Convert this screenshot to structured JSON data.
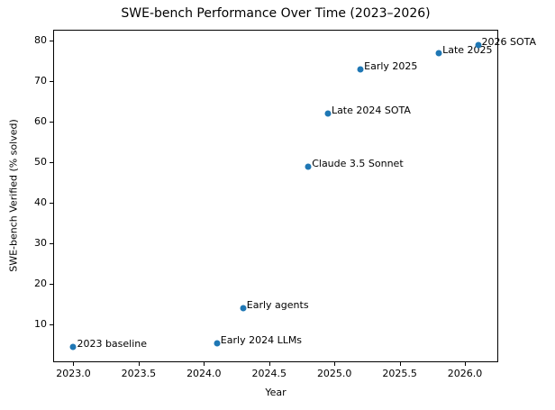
{
  "chart_data": {
    "type": "scatter",
    "title": "SWE-bench Performance Over Time (2023–2026)",
    "xlabel": "Year",
    "ylabel": "SWE-bench Verified (% solved)",
    "xlim": [
      2022.845,
      2026.255
    ],
    "ylim": [
      0.775,
      82.725
    ],
    "x_tick_values": [
      2023.0,
      2023.5,
      2024.0,
      2024.5,
      2025.0,
      2025.5,
      2026.0
    ],
    "x_tick_labels": [
      "2023.0",
      "2023.5",
      "2024.0",
      "2024.5",
      "2025.0",
      "2025.5",
      "2026.0"
    ],
    "y_tick_values": [
      10,
      20,
      30,
      40,
      50,
      60,
      70,
      80
    ],
    "y_tick_labels": [
      "10",
      "20",
      "30",
      "40",
      "50",
      "60",
      "70",
      "80"
    ],
    "grid": false,
    "legend_position": "none",
    "marker_color": "#1f77b4",
    "points": [
      {
        "x": 2023.0,
        "y": 4.5,
        "label": "2023 baseline"
      },
      {
        "x": 2024.1,
        "y": 5.5,
        "label": "Early 2024 LLMs"
      },
      {
        "x": 2024.3,
        "y": 14,
        "label": "Early agents"
      },
      {
        "x": 2024.8,
        "y": 49,
        "label": "Claude 3.5 Sonnet"
      },
      {
        "x": 2024.95,
        "y": 62,
        "label": "Late 2024 SOTA"
      },
      {
        "x": 2025.2,
        "y": 73,
        "label": "Early 2025"
      },
      {
        "x": 2025.8,
        "y": 77,
        "label": "Late 2025"
      },
      {
        "x": 2026.1,
        "y": 79,
        "label": "2026 SOTA"
      }
    ]
  }
}
